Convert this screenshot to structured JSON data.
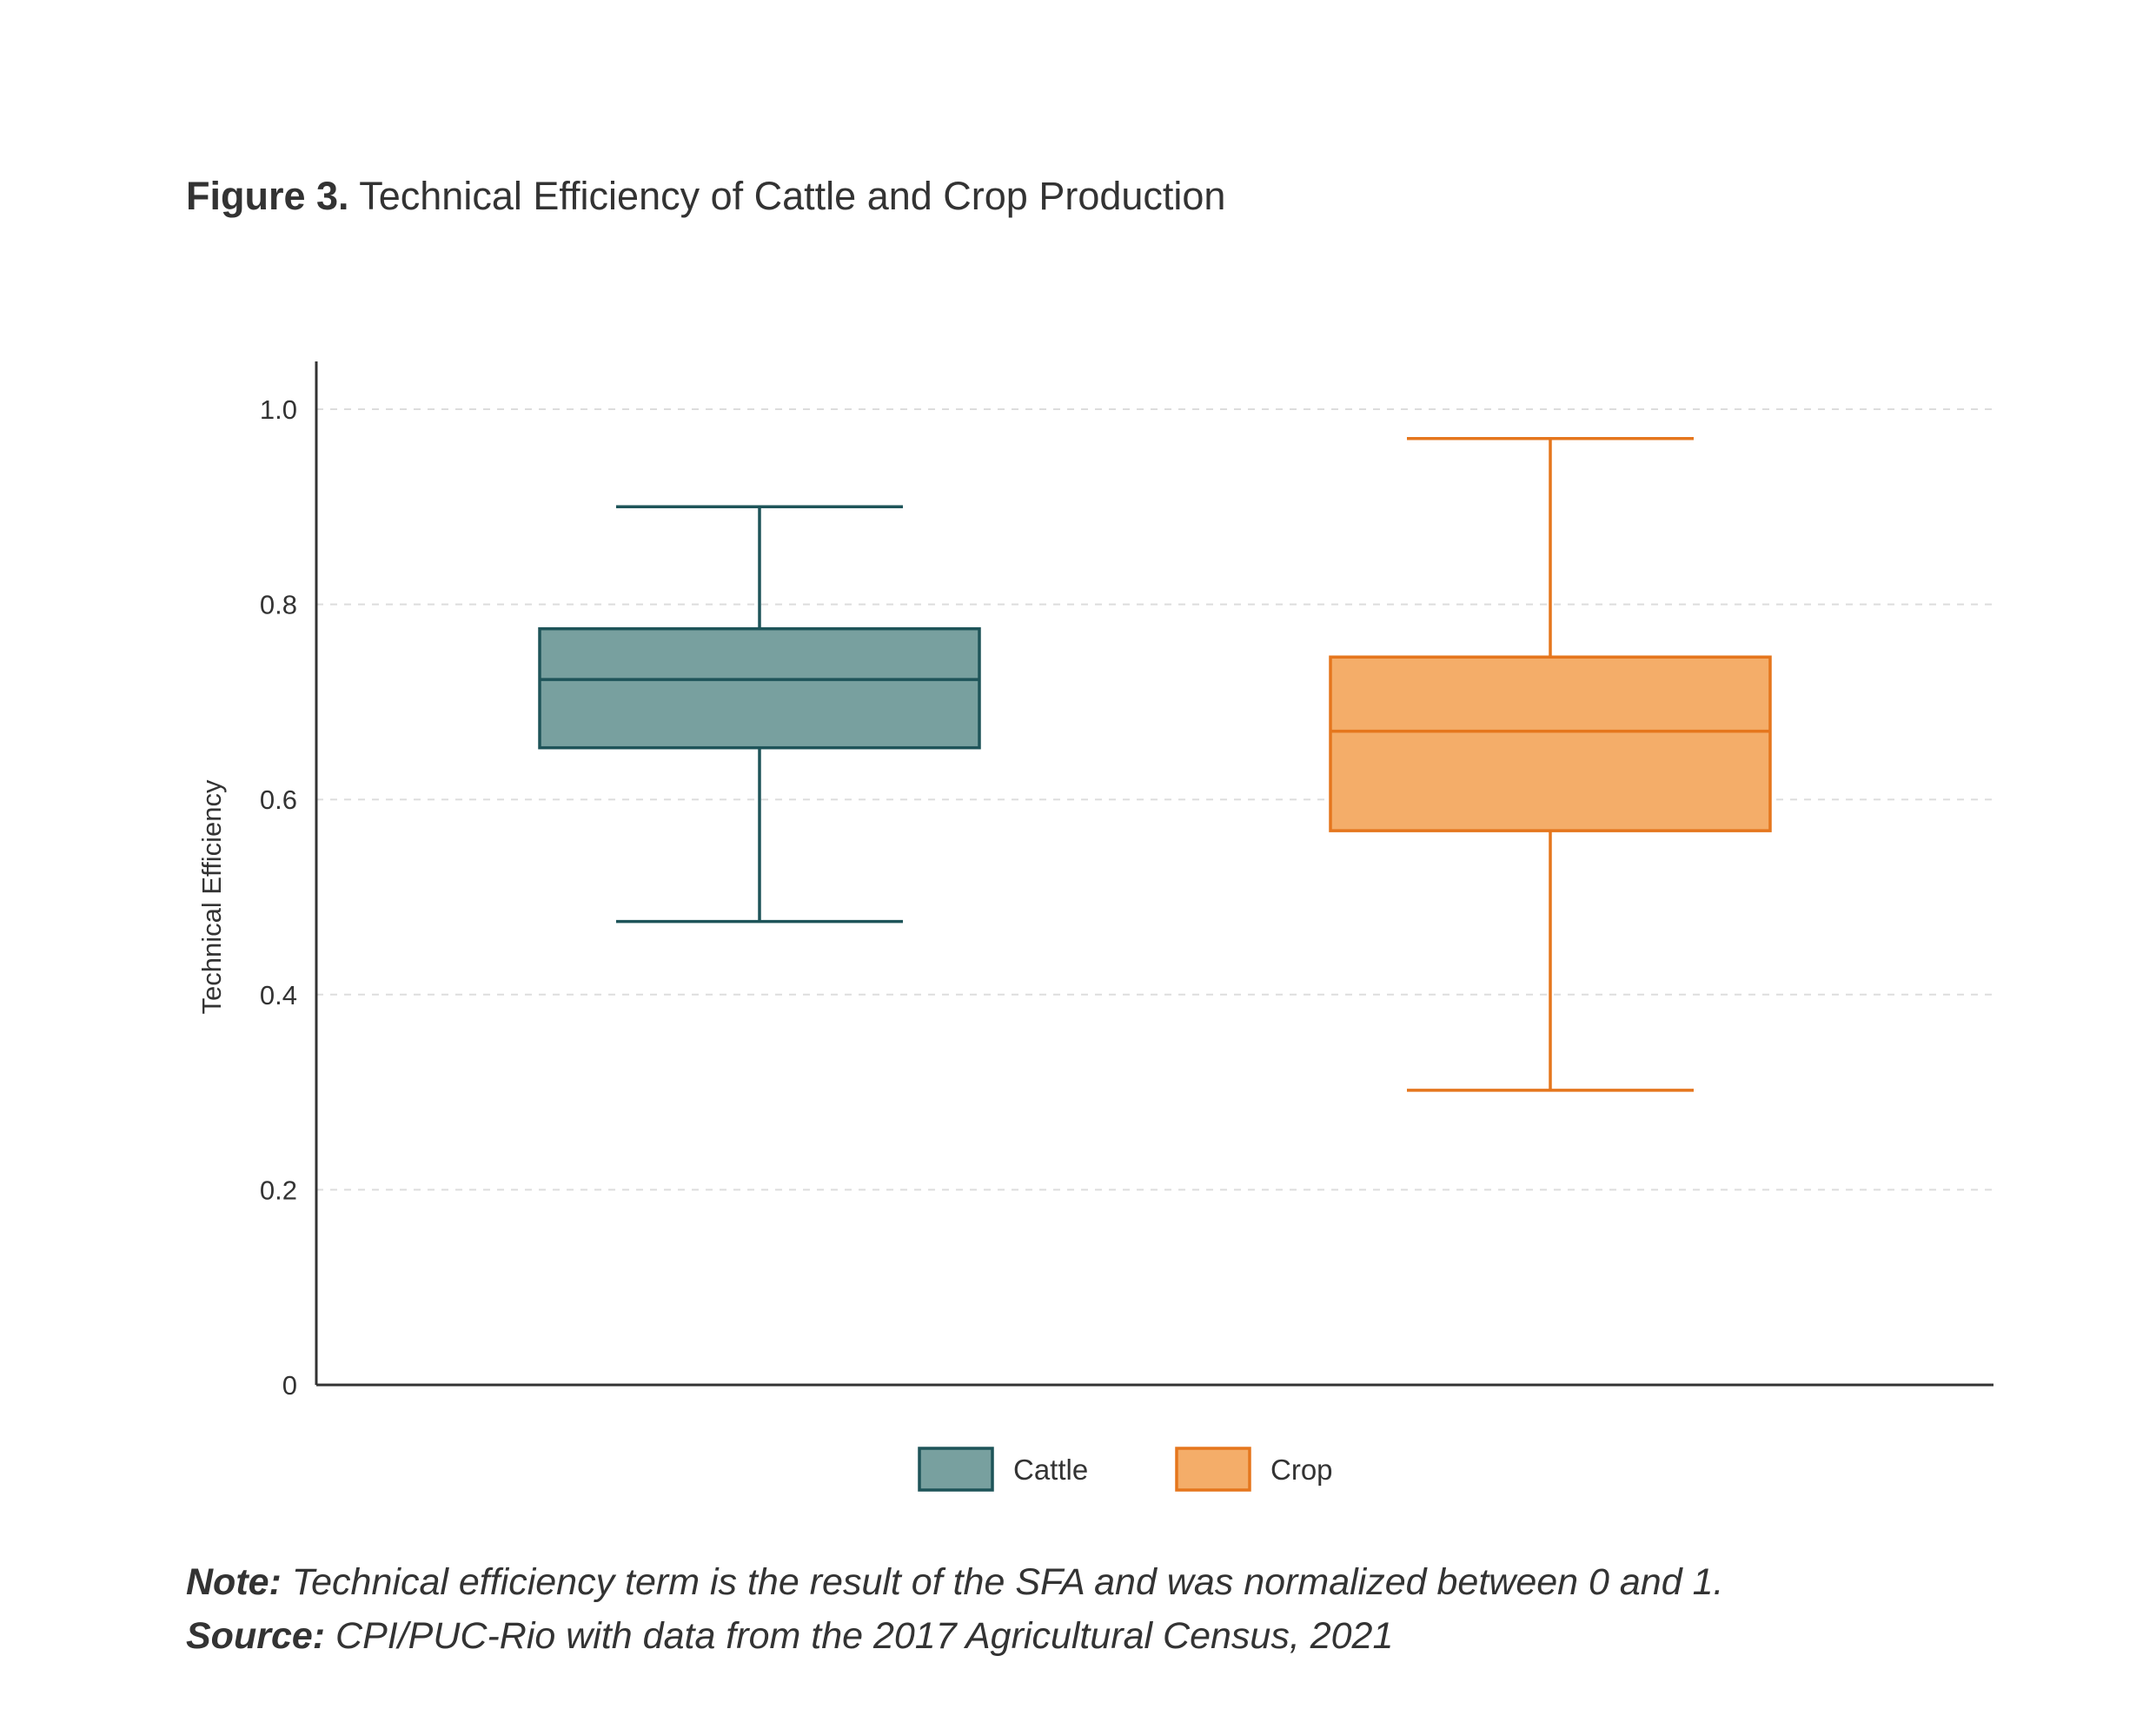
{
  "figure": {
    "label": "Figure 3.",
    "title": "Technical Efficiency of Cattle and Crop Production"
  },
  "chart_data": {
    "type": "boxplot",
    "ylabel": "Technical Efficiency",
    "xlabel": "",
    "ylim": [
      0,
      1.05
    ],
    "yticks": [
      0,
      0.2,
      0.4,
      0.6,
      0.8,
      1.0
    ],
    "ytick_labels": [
      "0",
      "0.2",
      "0.4",
      "0.6",
      "0.8",
      "1.0"
    ],
    "grid": "horizontal-dashed",
    "legend_position": "bottom-center",
    "series": [
      {
        "name": "Cattle",
        "min": 0.475,
        "q1": 0.653,
        "median": 0.723,
        "q3": 0.775,
        "max": 0.9,
        "fill": "#78a09f",
        "stroke": "#1e5459"
      },
      {
        "name": "Crop",
        "min": 0.302,
        "q1": 0.568,
        "median": 0.67,
        "q3": 0.746,
        "max": 0.97,
        "fill": "#f4ad69",
        "stroke": "#e5761d"
      }
    ]
  },
  "footer": {
    "note_label": "Note:",
    "note_text": " Technical efficiency term is the result of the SFA and was normalized between 0 and 1.",
    "source_label": "Source:",
    "source_text": " CPI/PUC-Rio with data from the 2017 Agricultural Census, 2021"
  }
}
